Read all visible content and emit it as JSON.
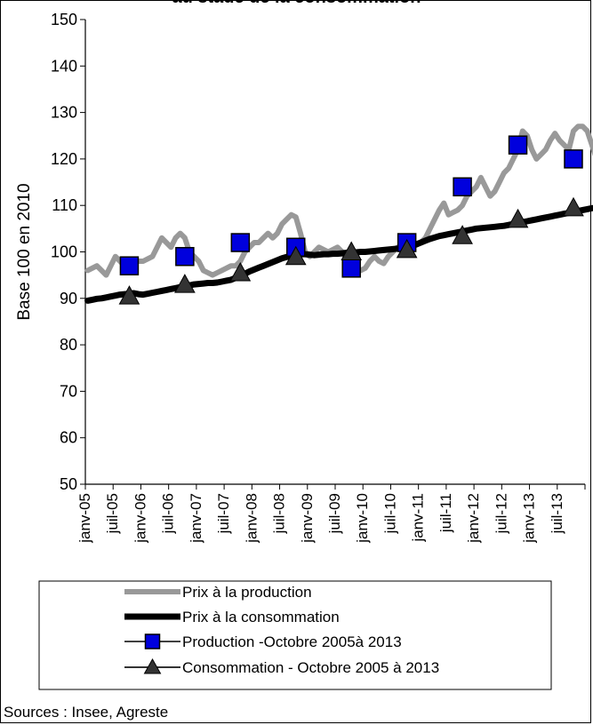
{
  "chart_data": {
    "type": "line",
    "title": "au stade de la consommation",
    "ylabel": "Base 100 en 2010",
    "xlabel": "",
    "ylim": [
      50,
      150
    ],
    "yticks": [
      50,
      60,
      70,
      80,
      90,
      100,
      110,
      120,
      130,
      140,
      150
    ],
    "x_start": "janv-05",
    "xtick_labels": [
      "janv-05",
      "juil-05",
      "janv-06",
      "juil-06",
      "janv-07",
      "juil-07",
      "janv-08",
      "juil-08",
      "janv-09",
      "juil-09",
      "janv-10",
      "juil-10",
      "janv-11",
      "juil-11",
      "janv-12",
      "juil-12",
      "janv-13",
      "juil-13"
    ],
    "series": [
      {
        "name": "Prix à la production",
        "color": "#999999",
        "style": "thick-line",
        "values": [
          96,
          96.5,
          97,
          96,
          95,
          97,
          99,
          98,
          97,
          97.5,
          98,
          98,
          98,
          98.5,
          99,
          101,
          103,
          102,
          101,
          103,
          104,
          103,
          100,
          99,
          98,
          96,
          95.5,
          95,
          95.5,
          96,
          96.5,
          97,
          97,
          98,
          100,
          101,
          102,
          102,
          103,
          104,
          103,
          104,
          106,
          107,
          108,
          107.5,
          104,
          100,
          99,
          100,
          101,
          100.5,
          100,
          100.5,
          101,
          100,
          98.5,
          97,
          96,
          96,
          96.5,
          98,
          99,
          98,
          97.5,
          99,
          100,
          101,
          100.5,
          101,
          102,
          101.5,
          102,
          103,
          105,
          107,
          109,
          110.5,
          108,
          108.5,
          109,
          110,
          112,
          113,
          114,
          116,
          114,
          112,
          113,
          115,
          117,
          118,
          120,
          122,
          126,
          125,
          122,
          120,
          121,
          122,
          124,
          125.5,
          124,
          123,
          122,
          126,
          127,
          127,
          126,
          123,
          120
        ]
      },
      {
        "name": "Prix à la consommation",
        "color": "#000000",
        "style": "thick-line",
        "values": [
          89.5,
          89.7,
          89.9,
          90,
          90.2,
          90.4,
          90.6,
          90.8,
          90.9,
          91,
          91.1,
          90.9,
          90.8,
          91,
          91.2,
          91.4,
          91.6,
          91.8,
          92,
          92.2,
          92.4,
          92.6,
          92.8,
          93,
          93.1,
          93.2,
          93.3,
          93.3,
          93.4,
          93.6,
          93.8,
          94,
          94.4,
          94.8,
          95.3,
          95.8,
          96.2,
          96.6,
          97,
          97.4,
          97.8,
          98.2,
          98.6,
          98.9,
          99.2,
          99.4,
          99.5,
          99.5,
          99.4,
          99.3,
          99.4,
          99.5,
          99.5,
          99.6,
          99.6,
          99.7,
          99.8,
          99.8,
          99.9,
          100,
          100,
          100.1,
          100.2,
          100.3,
          100.4,
          100.5,
          100.6,
          100.7,
          100.8,
          101,
          101.3,
          101.6,
          102,
          102.4,
          102.8,
          103.1,
          103.4,
          103.6,
          103.8,
          104,
          104.2,
          104.4,
          104.6,
          104.8,
          105,
          105.1,
          105.2,
          105.3,
          105.4,
          105.5,
          105.6,
          105.8,
          106,
          106.2,
          106.4,
          106.6,
          106.8,
          107,
          107.2,
          107.4,
          107.6,
          107.8,
          108,
          108.2,
          108.4,
          108.6,
          108.8,
          109,
          109.2,
          109.4,
          109.5,
          109.7
        ]
      },
      {
        "name": "Production -Octobre 2005à 2013",
        "color": "#0000dd",
        "style": "square-markers",
        "x_labels": [
          "oct-05",
          "oct-06",
          "oct-07",
          "oct-08",
          "oct-09",
          "oct-10",
          "oct-11",
          "oct-12",
          "oct-13"
        ],
        "values": [
          97,
          99,
          102,
          101,
          96.5,
          102,
          114,
          123,
          120
        ]
      },
      {
        "name": "Consommation - Octobre 2005 à 2013",
        "color": "#333333",
        "style": "triangle-markers",
        "x_labels": [
          "oct-05",
          "oct-06",
          "oct-07",
          "oct-08",
          "oct-09",
          "oct-10",
          "oct-11",
          "oct-12",
          "oct-13"
        ],
        "values": [
          90.5,
          93,
          95.5,
          99,
          100,
          100.5,
          103.5,
          107,
          109.5
        ]
      }
    ],
    "legend_position": "bottom",
    "grid": false
  },
  "source": "Sources : Insee, Agreste"
}
